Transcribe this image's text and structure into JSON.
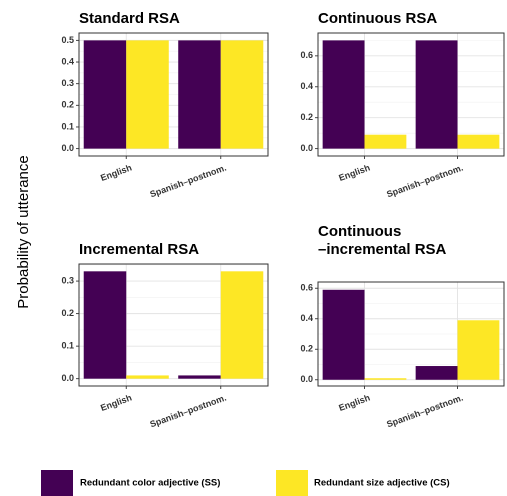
{
  "ylabel": "Probability of utterance",
  "colors": {
    "color_adj": "#440154",
    "size_adj": "#FDE725"
  },
  "legend": {
    "items": [
      {
        "label": "Redundant color adjective (SS)",
        "color": "#440154"
      },
      {
        "label": "Redundant size adjective (CS)",
        "color": "#FDE725"
      }
    ]
  },
  "chart_data": [
    {
      "type": "bar",
      "title": "Standard RSA",
      "categories": [
        "English",
        "Spanish–postnom."
      ],
      "series": [
        {
          "name": "Redundant color adjective (SS)",
          "values": [
            0.5,
            0.5
          ]
        },
        {
          "name": "Redundant size adjective (CS)",
          "values": [
            0.5,
            0.5
          ]
        }
      ],
      "ylim": [
        0,
        0.5
      ],
      "yticks": [
        "0.0",
        "0.1",
        "0.2",
        "0.3",
        "0.4",
        "0.5"
      ]
    },
    {
      "type": "bar",
      "title": "Continuous RSA",
      "categories": [
        "English",
        "Spanish–postnom."
      ],
      "series": [
        {
          "name": "Redundant color adjective (SS)",
          "values": [
            0.7,
            0.7
          ]
        },
        {
          "name": "Redundant size adjective (CS)",
          "values": [
            0.09,
            0.09
          ]
        }
      ],
      "ylim": [
        0,
        0.7
      ],
      "yticks": [
        "0.0",
        "0.2",
        "0.4",
        "0.6"
      ]
    },
    {
      "type": "bar",
      "title": "Incremental RSA",
      "categories": [
        "English",
        "Spanish–postnom."
      ],
      "series": [
        {
          "name": "Redundant color adjective (SS)",
          "values": [
            0.33,
            0.01
          ]
        },
        {
          "name": "Redundant size adjective (CS)",
          "values": [
            0.01,
            0.33
          ]
        }
      ],
      "ylim": [
        0,
        0.33
      ],
      "yticks": [
        "0.0",
        "0.1",
        "0.2",
        "0.3"
      ]
    },
    {
      "type": "bar",
      "title": "Continuous\n–incremental RSA",
      "categories": [
        "English",
        "Spanish–postnom."
      ],
      "series": [
        {
          "name": "Redundant color adjective (SS)",
          "values": [
            0.59,
            0.09
          ]
        },
        {
          "name": "Redundant size adjective (CS)",
          "values": [
            0.01,
            0.39
          ]
        }
      ],
      "ylim": [
        0,
        0.6
      ],
      "yticks": [
        "0.0",
        "0.2",
        "0.4",
        "0.6"
      ]
    }
  ]
}
